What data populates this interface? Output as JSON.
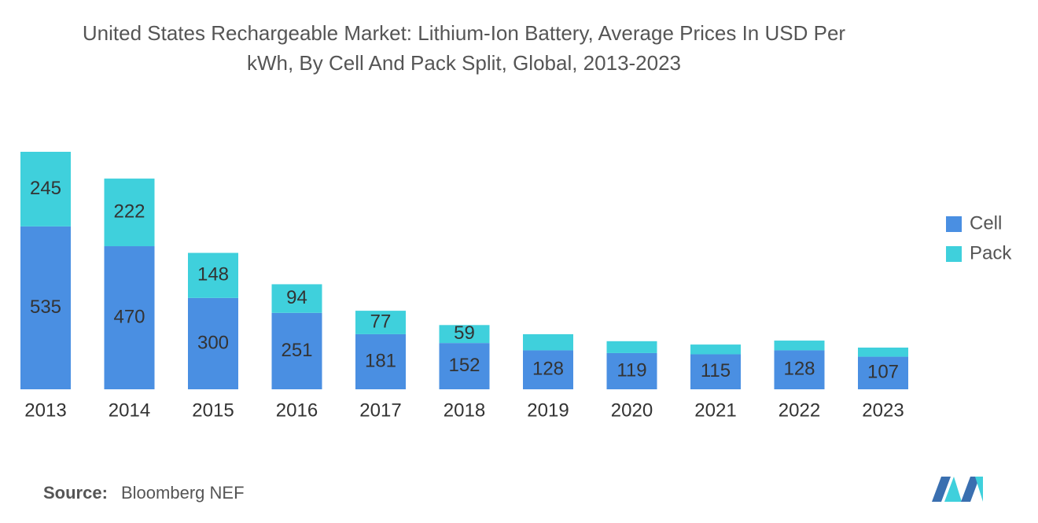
{
  "chart_data": {
    "type": "stacked-bar",
    "title": "United States Rechargeable Market: Lithium-Ion Battery, Average Prices In USD Per kWh, By Cell And Pack Split, Global, 2013-2023",
    "categories": [
      "2013",
      "2014",
      "2015",
      "2016",
      "2017",
      "2018",
      "2019",
      "2020",
      "2021",
      "2022",
      "2023"
    ],
    "series": [
      {
        "name": "Cell",
        "color": "#4a8fe2",
        "values": [
          535,
          470,
          300,
          251,
          181,
          152,
          128,
          119,
          115,
          128,
          107
        ]
      },
      {
        "name": "Pack",
        "color": "#3fd0dc",
        "values": [
          245,
          222,
          148,
          94,
          77,
          59,
          53,
          39,
          32,
          32,
          30
        ],
        "value_labels": [
          "245",
          "222",
          "148",
          "94",
          "77",
          "59",
          null,
          null,
          null,
          null,
          null
        ]
      }
    ],
    "legend": "right",
    "source_label": "Source:",
    "source": "Bloomberg NEF"
  }
}
